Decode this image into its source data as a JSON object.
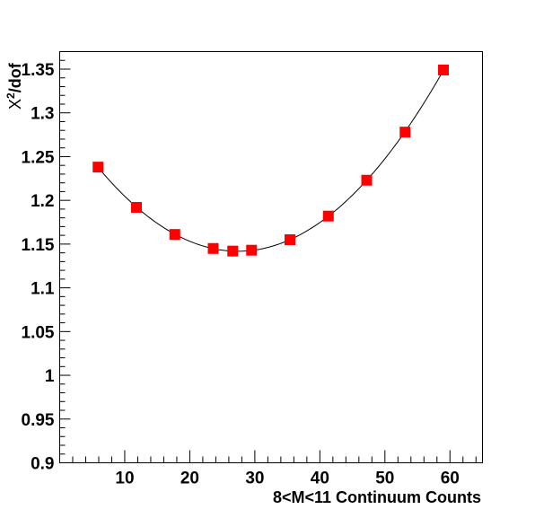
{
  "chart_data": {
    "type": "scatter",
    "title": "",
    "xlabel": "8<M<11 Continuum Counts",
    "ylabel_main": "X",
    "ylabel_sup": "2",
    "ylabel_tail": "/dof",
    "xlim": [
      0,
      65
    ],
    "ylim": [
      0.9,
      1.37
    ],
    "xticks": [
      10,
      20,
      30,
      40,
      50,
      60
    ],
    "xtick_labels": [
      "10",
      "20",
      "30",
      "40",
      "50",
      "60"
    ],
    "yticks": [
      0.9,
      0.95,
      1.0,
      1.05,
      1.1,
      1.15,
      1.2,
      1.25,
      1.3,
      1.35
    ],
    "ytick_labels": [
      "0.9",
      "0.95",
      "1",
      "1.05",
      "1.1",
      "1.15",
      "1.2",
      "1.25",
      "1.3",
      "1.35"
    ],
    "series": [
      {
        "marker": "square",
        "color": "#ff0000",
        "x": [
          5.9,
          11.8,
          17.7,
          23.6,
          26.6,
          29.5,
          35.4,
          41.3,
          47.2,
          53.1,
          59.0
        ],
        "y": [
          1.238,
          1.192,
          1.161,
          1.145,
          1.142,
          1.143,
          1.155,
          1.182,
          1.223,
          1.278,
          1.349
        ]
      }
    ],
    "fit_curve": {
      "color": "#000000"
    },
    "grid": false,
    "legend": "none"
  }
}
